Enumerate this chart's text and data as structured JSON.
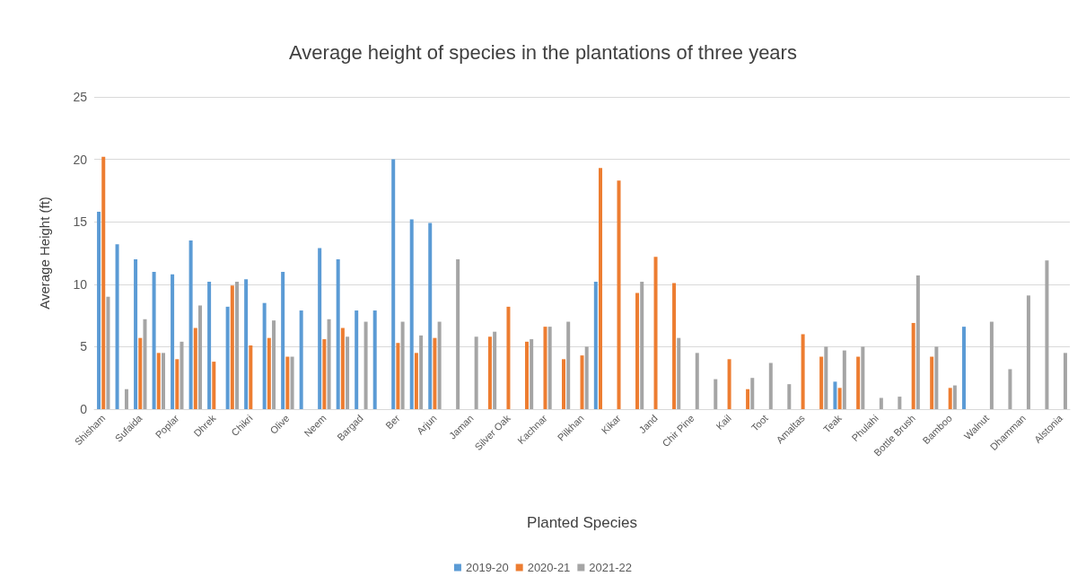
{
  "chart_data": {
    "type": "bar",
    "title": "Average height of species in the plantations of three years",
    "xlabel": "Planted Species",
    "ylabel": "Average Height (ft)",
    "categories": [
      "Shisham",
      null,
      "Sufaida",
      null,
      "Poplar",
      null,
      "Dhrek",
      null,
      "Chikri",
      null,
      "Olive",
      null,
      "Neem",
      null,
      "Bargad",
      null,
      "Ber",
      null,
      "Arjun",
      null,
      "Jaman",
      null,
      "Silver Oak",
      null,
      "Kachnar",
      null,
      "Pilkhan",
      null,
      "Kikar",
      null,
      "Jand",
      null,
      "Chir Pine",
      null,
      "Kail",
      null,
      "Toot",
      null,
      "Amaltas",
      null,
      "Teak",
      null,
      "Phulahi",
      null,
      "Bottle Brush",
      null,
      "Bamboo",
      null,
      "Walnut",
      null,
      "Dhamman",
      null,
      "Alstonia"
    ],
    "series": [
      {
        "name": "2019-20",
        "color": "#5b9bd5",
        "values": [
          15.8,
          13.2,
          12.0,
          11.0,
          10.8,
          13.5,
          10.2,
          8.2,
          10.4,
          8.5,
          11.0,
          7.9,
          12.9,
          12.0,
          7.9,
          7.9,
          20.0,
          15.2,
          14.9,
          null,
          null,
          null,
          null,
          null,
          null,
          null,
          null,
          10.2,
          null,
          null,
          null,
          null,
          null,
          null,
          null,
          null,
          null,
          null,
          null,
          null,
          2.2,
          null,
          null,
          null,
          null,
          null,
          null,
          6.6,
          null,
          null,
          null,
          null,
          null
        ]
      },
      {
        "name": "2020-21",
        "color": "#ed7d31",
        "values": [
          20.2,
          null,
          5.7,
          4.5,
          4.0,
          6.5,
          3.8,
          9.9,
          5.1,
          5.7,
          4.2,
          null,
          5.6,
          6.5,
          null,
          null,
          5.3,
          4.5,
          5.7,
          null,
          null,
          5.8,
          8.2,
          5.4,
          6.6,
          4.0,
          4.3,
          19.3,
          18.3,
          9.3,
          12.2,
          10.1,
          null,
          null,
          4.0,
          1.6,
          null,
          null,
          6.0,
          4.2,
          1.7,
          4.2,
          null,
          null,
          6.9,
          4.2,
          1.7,
          null,
          null,
          null,
          null,
          null,
          null
        ]
      },
      {
        "name": "2021-22",
        "color": "#a5a5a5",
        "values": [
          9.0,
          1.6,
          7.2,
          4.5,
          5.4,
          8.3,
          null,
          10.2,
          null,
          7.1,
          4.2,
          null,
          7.2,
          5.8,
          7.0,
          null,
          7.0,
          5.9,
          7.0,
          12.0,
          5.8,
          6.2,
          null,
          5.6,
          6.6,
          7.0,
          5.0,
          null,
          null,
          10.2,
          null,
          5.7,
          4.5,
          2.4,
          null,
          2.5,
          3.7,
          2.0,
          null,
          5.0,
          4.7,
          5.0,
          0.9,
          1.0,
          10.7,
          5.0,
          1.9,
          null,
          7.0,
          3.2,
          9.1,
          11.9,
          4.5
        ]
      }
    ],
    "ylim": [
      0,
      25
    ],
    "yticks": [
      0,
      5,
      10,
      15,
      20,
      25
    ],
    "grid": "y",
    "legend": "bottom"
  }
}
